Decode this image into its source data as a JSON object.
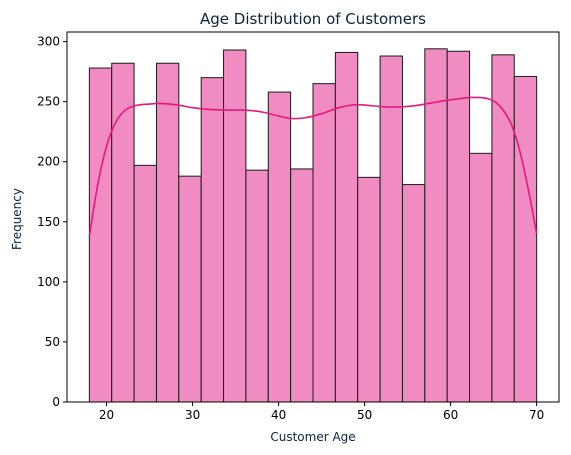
{
  "chart_data": {
    "type": "bar",
    "title": "Age Distribution of Customers",
    "xlabel": "Customer Age",
    "ylabel": "Frequency",
    "xlim": [
      15.4,
      72.6
    ],
    "ylim": [
      0,
      308
    ],
    "x_ticks": [
      20,
      30,
      40,
      50,
      60,
      70
    ],
    "y_ticks": [
      0,
      50,
      100,
      150,
      200,
      250,
      300
    ],
    "bins": [
      {
        "x0": 18.0,
        "x1": 20.6,
        "value": 278
      },
      {
        "x0": 20.6,
        "x1": 23.2,
        "value": 282
      },
      {
        "x0": 23.2,
        "x1": 25.8,
        "value": 197
      },
      {
        "x0": 25.8,
        "x1": 28.4,
        "value": 282
      },
      {
        "x0": 28.4,
        "x1": 31.0,
        "value": 188
      },
      {
        "x0": 31.0,
        "x1": 33.6,
        "value": 270
      },
      {
        "x0": 33.6,
        "x1": 36.2,
        "value": 293
      },
      {
        "x0": 36.2,
        "x1": 38.8,
        "value": 193
      },
      {
        "x0": 38.8,
        "x1": 41.4,
        "value": 258
      },
      {
        "x0": 41.4,
        "x1": 44.0,
        "value": 194
      },
      {
        "x0": 44.0,
        "x1": 46.6,
        "value": 265
      },
      {
        "x0": 46.6,
        "x1": 49.2,
        "value": 291
      },
      {
        "x0": 49.2,
        "x1": 51.8,
        "value": 187
      },
      {
        "x0": 51.8,
        "x1": 54.4,
        "value": 288
      },
      {
        "x0": 54.4,
        "x1": 57.0,
        "value": 181
      },
      {
        "x0": 57.0,
        "x1": 59.6,
        "value": 294
      },
      {
        "x0": 59.6,
        "x1": 62.2,
        "value": 292
      },
      {
        "x0": 62.2,
        "x1": 64.8,
        "value": 207
      },
      {
        "x0": 64.8,
        "x1": 67.4,
        "value": 289
      },
      {
        "x0": 67.4,
        "x1": 70.0,
        "value": 271
      }
    ],
    "kde": {
      "x": [
        18,
        19,
        20,
        21,
        22,
        23,
        24,
        25,
        26,
        28,
        30,
        32,
        34,
        36,
        38,
        40,
        41.5,
        43,
        45,
        47,
        49,
        51,
        53,
        55,
        57,
        59,
        61,
        62.5,
        64,
        65,
        66,
        67,
        68,
        69,
        70
      ],
      "y": [
        138,
        182,
        213,
        232,
        242,
        246,
        247.5,
        248,
        248.5,
        247.5,
        245,
        243.5,
        243,
        243,
        241.5,
        238,
        236,
        236.5,
        240,
        245,
        247.5,
        246.5,
        245.5,
        246,
        248,
        250.5,
        252.5,
        253.5,
        253,
        250.5,
        244,
        232,
        210,
        178,
        140
      ]
    },
    "colors": {
      "bar_fill": "#f08cc1",
      "bar_edge": "#1a1a1a",
      "kde_line": "#e6197f",
      "title": "#0c2340",
      "axis_label": "#0c2340"
    },
    "grid": false,
    "legend": "none"
  }
}
